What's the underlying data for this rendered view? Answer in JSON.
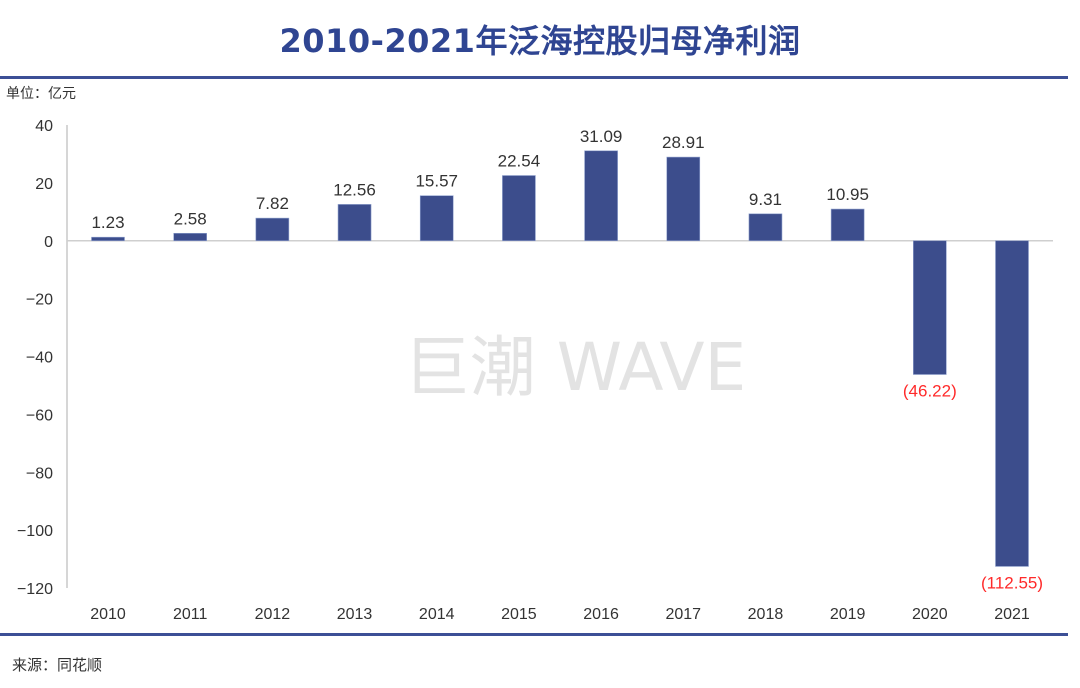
{
  "header": {
    "title": "2010-2021年泛海控股归母净利润"
  },
  "unit_label": "单位：亿元",
  "source_label": "来源：同花顺",
  "watermark": "巨潮 WAVE",
  "colors": {
    "bar": "#3c4d8c",
    "title": "#2f4592",
    "negative_label": "#ff2a2a",
    "rule": "#3c4f96"
  },
  "chart_data": {
    "type": "bar",
    "title": "2010-2021年泛海控股归母净利润",
    "xlabel": "",
    "ylabel": "单位：亿元",
    "categories": [
      "2010",
      "2011",
      "2012",
      "2013",
      "2014",
      "2015",
      "2016",
      "2017",
      "2018",
      "2019",
      "2020",
      "2021"
    ],
    "values": [
      1.23,
      2.58,
      7.82,
      12.56,
      15.57,
      22.54,
      31.09,
      28.91,
      9.31,
      10.95,
      -46.22,
      -112.55
    ],
    "data_labels": [
      "1.23",
      "2.58",
      "7.82",
      "12.56",
      "15.57",
      "22.54",
      "31.09",
      "28.91",
      "9.31",
      "10.95",
      "(46.22)",
      "(112.55)"
    ],
    "ylim": [
      -120,
      40
    ],
    "yticks": [
      40,
      20,
      0,
      -20,
      -40,
      -60,
      -80,
      -100,
      -120
    ],
    "ytick_labels": [
      "40",
      "20",
      "0",
      "−20",
      "−40",
      "−60",
      "−80",
      "−100",
      "−120"
    ],
    "grid": false,
    "legend": "none"
  }
}
